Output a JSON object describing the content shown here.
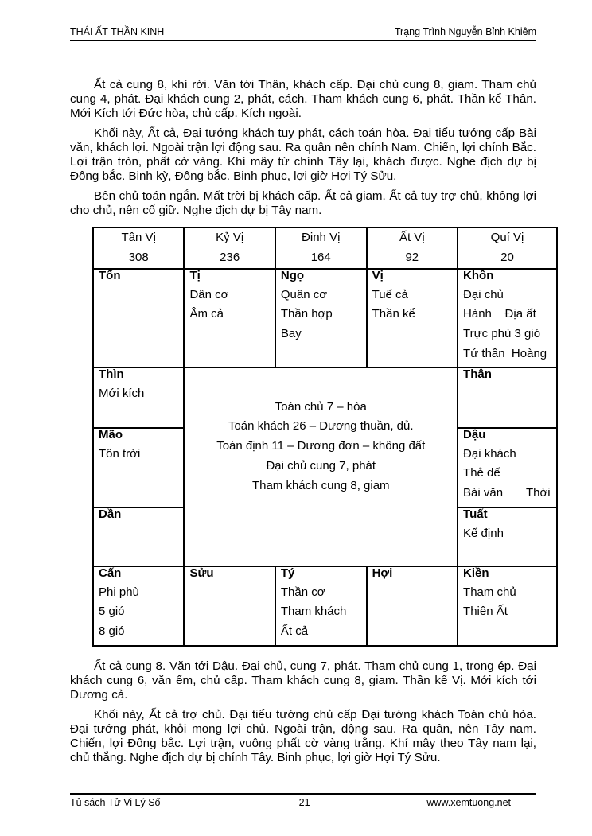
{
  "header": {
    "title": "THÁI ẤT THẦN KINH",
    "author": "Trạng Trình Nguyễn Bỉnh Khiêm"
  },
  "paragraphs_top": [
    "Ất cả cung 8, khí rời. Văn tới Thân, khách cấp. Đại chủ cung 8, giam. Tham chủ cung 4, phát. Đại khách cung 2, phát, cách. Tham khách cung 6, phát. Thần kể Thân. Mới Kích tới Đức hòa, chủ cấp. Kích ngoài.",
    "Khối này, Ất cả, Đại tướng khách tuy phát, cách toán hòa. Đại tiểu tướng cấp Bài văn, khách lợi. Ngoài trận lợi động sau. Ra quân nên chính Nam. Chiến, lợi chính Bắc. Lợi trận tròn, phất cờ vàng. Khí mây từ chính Tây lại, khách được. Nghe địch dự bị Đông bắc. Binh kỳ, Đông bắc. Binh phục, lợi giờ Hợi Tý Sửu.",
    "Bên chủ toán ngắn. Mất trời bị khách cấp. Ất cả giam. Ất cả tuy trợ chủ, không lợi cho chủ, nên cố giữ. Nghe địch dự bị Tây nam."
  ],
  "table": {
    "header": [
      {
        "name": "Tân Vị",
        "value": "308"
      },
      {
        "name": "Kỷ Vị",
        "value": "236"
      },
      {
        "name": "Đinh Vị",
        "value": "164"
      },
      {
        "name": "Ất Vị",
        "value": "92"
      },
      {
        "name": "Quí Vị",
        "value": "20"
      }
    ],
    "cells": {
      "ton": {
        "name": "Tốn",
        "lines": []
      },
      "ti": {
        "name": "Tị",
        "lines": [
          "Dân cơ",
          "Âm cả"
        ]
      },
      "ngo": {
        "name": "Ngọ",
        "lines": [
          "Quân cơ",
          "Thần hợp",
          "Bay"
        ]
      },
      "vi": {
        "name": "Vị",
        "lines": [
          "Tuế cả",
          "Thần kể"
        ]
      },
      "khon": {
        "name": "Khôn",
        "lines": [
          "Đại chủ",
          "Hành    Địa ất",
          "Trực phù 3 gió",
          "Tứ thần  Hoàng"
        ]
      },
      "thin": {
        "name": "Thìn",
        "lines": [
          "Mới kích"
        ]
      },
      "than": {
        "name": "Thân",
        "lines": []
      },
      "mao": {
        "name": "Mão",
        "lines": [
          "Tôn trời"
        ]
      },
      "dau": {
        "name": "Dậu",
        "lines": [
          "Đại khách",
          "Thẻ đế",
          "Bài văn       Thời"
        ]
      },
      "dan": {
        "name": "Dần",
        "lines": []
      },
      "tuat": {
        "name": "Tuất",
        "lines": [
          "Kế định"
        ]
      },
      "can": {
        "name": "Cấn",
        "lines": [
          "Phi phù",
          "5 gió",
          "8 gió"
        ]
      },
      "suu": {
        "name": "Sửu",
        "lines": []
      },
      "ty": {
        "name": "Tý",
        "lines": [
          "Thần cơ",
          "Tham khách",
          "Ất cả"
        ]
      },
      "hoi": {
        "name": "Hợi",
        "lines": []
      },
      "kien": {
        "name": "Kiền",
        "lines": [
          "Tham chủ",
          "Thiên Ất"
        ]
      }
    },
    "center": [
      "Toán chủ 7 – hòa",
      "Toán khách 26 – Dương thuần, đủ.",
      "Toán định 11 – Dương đơn – không đất",
      "Đại chủ cung 7, phát",
      "Tham khách cung 8, giam"
    ]
  },
  "paragraphs_bottom": [
    "Ất cả cung 8. Văn tới Dậu. Đại chủ, cung 7, phát. Tham chủ cung 1, trong ép. Đại khách cung 6, văn ếm, chủ cấp. Tham khách cung 8, giam. Thần kể Vị. Mới kích tới Dương cả.",
    "Khối này, Ất cả trợ chủ. Đại tiểu tướng chủ cấp Đại tướng khách Toán chủ hòa. Đại tướng phát, khỏi mong lợi chủ. Ngoài trận, động sau. Ra quân, nên Tây nam. Chiến, lợi Đông bắc. Lợi trận, vuông phất cờ vàng trắng. Khí mây theo Tây nam lại, chủ thắng. Nghe địch dự bị chính Tây. Binh phục, lợi giờ Hợi Tý Sửu."
  ],
  "footer": {
    "left": "Tủ sách Tử Vi Lý Số",
    "page": "- 21 -",
    "url": "www.xemtuong.net"
  }
}
